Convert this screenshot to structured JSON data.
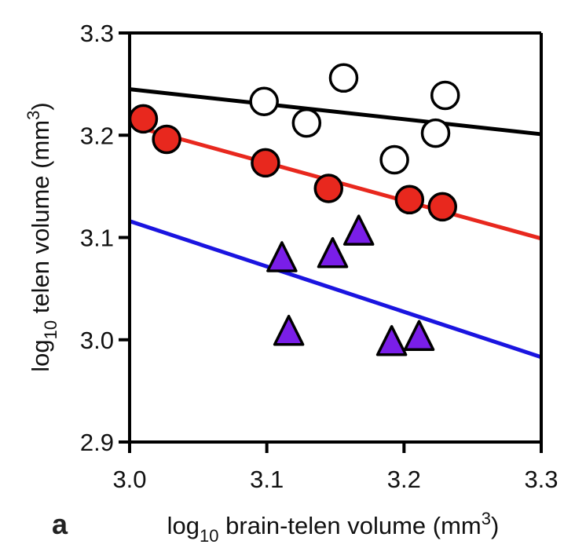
{
  "chart_data": {
    "type": "scatter",
    "panel_label": "a",
    "title": "",
    "xlabel": {
      "prefix": "log",
      "sub": "10",
      "text": " brain-telen volume (mm",
      "sup": "3",
      "suffix": ")"
    },
    "ylabel": {
      "prefix": "log",
      "sub": "10",
      "text": " telen volume (mm",
      "sup": "3",
      "suffix": ")"
    },
    "xlim": [
      3.0,
      3.3
    ],
    "ylim": [
      2.9,
      3.3
    ],
    "xticks": [
      "3.0",
      "3.1",
      "3.2",
      "3.3"
    ],
    "yticks": [
      "2.9",
      "3.0",
      "3.1",
      "3.2",
      "3.3"
    ],
    "grid": false,
    "legend": "none",
    "series": [
      {
        "name": "open-circles",
        "marker": "circle",
        "fill": "#ffffff",
        "edge": "#000000",
        "line_color": "#000000",
        "points": [
          [
            3.098,
            3.233
          ],
          [
            3.129,
            3.212
          ],
          [
            3.156,
            3.256
          ],
          [
            3.193,
            3.176
          ],
          [
            3.223,
            3.202
          ],
          [
            3.23,
            3.239
          ]
        ],
        "fit": [
          [
            3.0,
            3.245
          ],
          [
            3.3,
            3.201
          ]
        ]
      },
      {
        "name": "red-circles",
        "marker": "circle",
        "fill": "#e8281e",
        "edge": "#000000",
        "line_color": "#e8281e",
        "points": [
          [
            3.01,
            3.216
          ],
          [
            3.027,
            3.196
          ],
          [
            3.099,
            3.173
          ],
          [
            3.145,
            3.148
          ],
          [
            3.204,
            3.137
          ],
          [
            3.228,
            3.13
          ]
        ],
        "fit": [
          [
            3.0,
            3.21
          ],
          [
            3.3,
            3.099
          ]
        ]
      },
      {
        "name": "purple-triangles",
        "marker": "triangle",
        "fill": "#7a1ee8",
        "edge": "#000000",
        "line_color": "#1a14e0",
        "points": [
          [
            3.111,
            3.079
          ],
          [
            3.148,
            3.083
          ],
          [
            3.167,
            3.105
          ],
          [
            3.116,
            3.007
          ],
          [
            3.191,
            2.997
          ],
          [
            3.211,
            3.002
          ]
        ],
        "fit": [
          [
            3.0,
            3.116
          ],
          [
            3.3,
            2.983
          ]
        ]
      }
    ]
  }
}
